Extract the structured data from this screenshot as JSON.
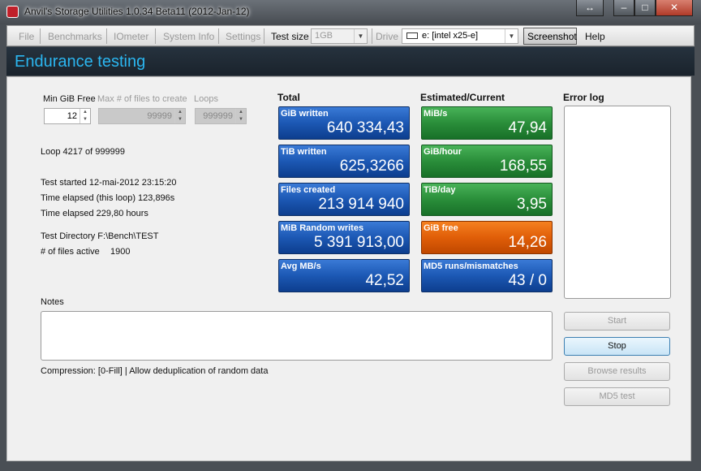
{
  "window": {
    "title": "Anvil's Storage Utilities 1.0.34 Beta11 (2012-Jan-12)"
  },
  "menu": {
    "items": [
      "File",
      "Benchmarks",
      "IOmeter",
      "System Info",
      "Settings"
    ],
    "test_size_label": "Test size",
    "test_size": "1GB",
    "drive_label": "Drive",
    "drive": "e: [intel x25-e]",
    "screenshot": "Screenshot",
    "help": "Help"
  },
  "header": {
    "title": "Endurance testing"
  },
  "settings": {
    "min_free_label": "Min GiB Free",
    "min_free": "12",
    "max_files_label": "Max # of files to create",
    "max_files": "99999",
    "loops_label": "Loops",
    "loops": "999999"
  },
  "status": {
    "loop": "Loop 4217 of 999999",
    "started": "Test started 12-mai-2012 23:15:20",
    "elapsed_loop": "Time elapsed (this loop) 123,896s",
    "elapsed": "Time elapsed 229,80 hours",
    "directory": "Test Directory F:\\Bench\\TEST",
    "files_active_label": "# of files active",
    "files_active": "1900"
  },
  "total": {
    "title": "Total",
    "tiles": [
      {
        "label": "GiB written",
        "value": "640 334,43"
      },
      {
        "label": "TiB written",
        "value": "625,3266"
      },
      {
        "label": "Files created",
        "value": "213 914 940"
      },
      {
        "label": "MiB Random writes",
        "value": "5 391 913,00"
      },
      {
        "label": "Avg MB/s",
        "value": "42,52"
      }
    ]
  },
  "estimated": {
    "title": "Estimated/Current",
    "tiles": [
      {
        "label": "MiB/s",
        "value": "47,94"
      },
      {
        "label": "GiB/hour",
        "value": "168,55"
      },
      {
        "label": "TiB/day",
        "value": "3,95"
      },
      {
        "label": "GiB free",
        "value": "14,26"
      },
      {
        "label": "MD5 runs/mismatches",
        "value": "43 / 0"
      }
    ]
  },
  "error_log": {
    "title": "Error log"
  },
  "notes": {
    "label": "Notes",
    "compression": "Compression: [0-Fill] | Allow deduplication of random data"
  },
  "buttons": [
    "Start",
    "Stop",
    "Browse results",
    "MD5 test"
  ]
}
